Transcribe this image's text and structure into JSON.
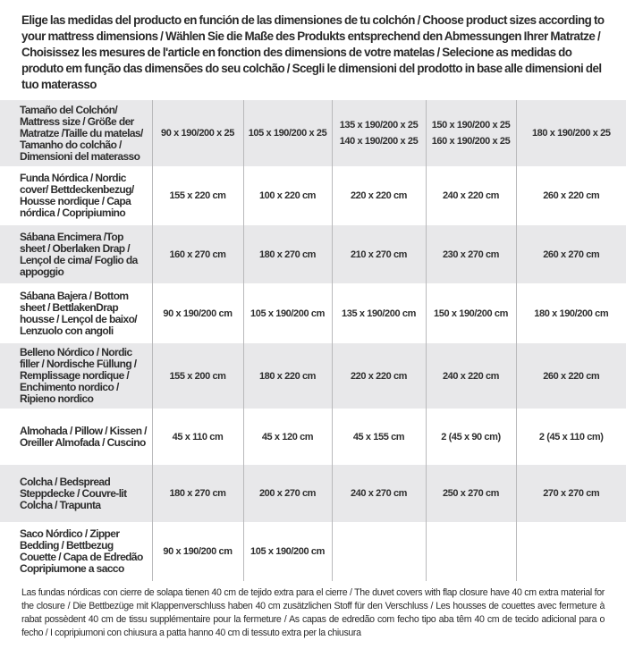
{
  "intro": "Elige las medidas del producto en función de las dimensiones de tu colchón / Choose product sizes according to your mattress dimensions / Wählen Sie die Maße des Produkts entsprechend den Abmessungen Ihrer Matratze / Choisissez les mesures de l'article en fonction des dimensions de votre matelas / Selecione as medidas do produto em função das dimensões do seu colchão / Scegli le dimensioni del prodotto in base alle dimensioni del tuo materasso",
  "header": {
    "label": "Tamaño del Colchón/ Mattress size / Größe der Matratze /Taille du matelas/ Tamanho do colchão / Dimensioni del materasso",
    "cols": [
      [
        "90 x 190/200 x 25"
      ],
      [
        "105 x 190/200 x 25"
      ],
      [
        "135 x 190/200 x 25",
        "140 x 190/200 x 25"
      ],
      [
        "150 x 190/200 x 25",
        "160 x 190/200 x 25"
      ],
      [
        "180 x 190/200 x 25"
      ]
    ]
  },
  "rows": [
    {
      "label": "Funda Nórdica /  Nordic cover/ Bettdeckenbezug/ Housse nordique  / Capa nórdica / Copripiumino",
      "values": [
        "155 x 220 cm",
        "100 x 220 cm",
        "220 x 220 cm",
        "240 x 220 cm",
        "260 x 220 cm"
      ]
    },
    {
      "label": "Sábana Encimera /Top sheet / Oberlaken Drap / Lençol de cima/ Foglio da appoggio",
      "values": [
        "160 x 270 cm",
        "180 x 270 cm",
        "210 x 270 cm",
        "230 x 270 cm",
        "260 x 270 cm"
      ]
    },
    {
      "label": "Sábana Bajera / Bottom sheet / BettlakenDrap housse / Lençol de baixo/ Lenzuolo con angoli",
      "values": [
        "90 x 190/200 cm",
        "105 x 190/200 cm",
        "135 x 190/200 cm",
        "150 x 190/200 cm",
        "180 x 190/200 cm"
      ]
    },
    {
      "label": "Belleno Nórdico / Nordic filler / Nordische Füllung / Remplissage nordique / Enchimento nordico / Ripieno nordico",
      "values": [
        "155 x 200 cm",
        "180 x 220 cm",
        "220 x 220 cm",
        "240 x 220 cm",
        "260 x 220 cm"
      ]
    },
    {
      "label": "Almohada  / Pillow / Kissen / Oreiller Almofada / Cuscino",
      "values": [
        "45 x 110 cm",
        "45 x 120 cm",
        "45 x 155 cm",
        "2 (45 x 90 cm)",
        "2 (45 x 110 cm)"
      ]
    },
    {
      "label": "Colcha / Bedspread Steppdecke / Couvre-lit Colcha / Trapunta",
      "values": [
        "180 x 270 cm",
        "200 x 270 cm",
        "240 x 270 cm",
        "250 x 270 cm",
        "270 x 270 cm"
      ]
    },
    {
      "label": "Saco Nórdico / Zipper Bedding / Bettbezug Couette  / Capa de Edredão Copripiumone a sacco",
      "values": [
        "90 x 190/200 cm",
        "105 x 190/200 cm",
        "",
        "",
        ""
      ]
    }
  ],
  "note": "Las fundas nórdicas con cierre de solapa tienen 40 cm de tejido extra para el cierre  / The duvet covers with flap closure have 40 cm extra material for the closure / Die Bettbezüge mit Klappenverschluss haben 40 cm zusätzlichen Stoff für den Verschluss / Les housses de couettes avec fermeture à rabat possèdent 40 cm de tissu supplémentaire pour la fermeture / As capas de edredão com fecho tipo aba têm 40 cm de tecido adicional para o fecho / I copripiumoni con chiusura a patta hanno 40 cm di tessuto extra per la chiusura",
  "colors": {
    "row_shade": "#e8e8ea",
    "divider": "#b9b9bb",
    "text": "#2a2a2a"
  }
}
